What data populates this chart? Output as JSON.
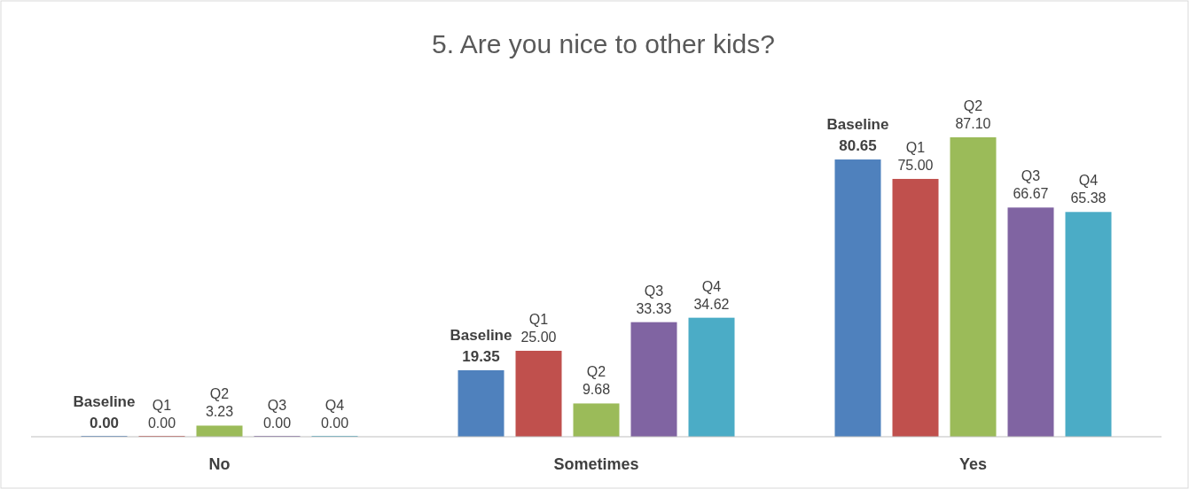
{
  "chart_data": {
    "type": "bar",
    "title": "5.  Are you nice to other kids?",
    "categories": [
      "No",
      "Sometimes",
      "Yes"
    ],
    "series": [
      {
        "name": "Baseline",
        "color": "#4f81bd",
        "values": [
          0,
          19.35,
          80.65
        ],
        "value_labels": [
          "0.00",
          "19.35",
          "80.65"
        ]
      },
      {
        "name": "Q1",
        "color": "#c0504d",
        "values": [
          0,
          25,
          75
        ],
        "value_labels": [
          "0.00",
          "25.00",
          "75.00"
        ]
      },
      {
        "name": "Q2",
        "color": "#9bbb59",
        "values": [
          3.23,
          9.68,
          87.1
        ],
        "value_labels": [
          "3.23",
          "9.68",
          "87.10"
        ]
      },
      {
        "name": "Q3",
        "color": "#8064a2",
        "values": [
          0,
          33.33,
          66.67
        ],
        "value_labels": [
          "0.00",
          "33.33",
          "66.67"
        ]
      },
      {
        "name": "Q4",
        "color": "#4bacc6",
        "values": [
          0,
          34.62,
          65.38
        ],
        "value_labels": [
          "0.00",
          "34.62",
          "65.38"
        ]
      }
    ],
    "legend": false,
    "grid": false
  }
}
